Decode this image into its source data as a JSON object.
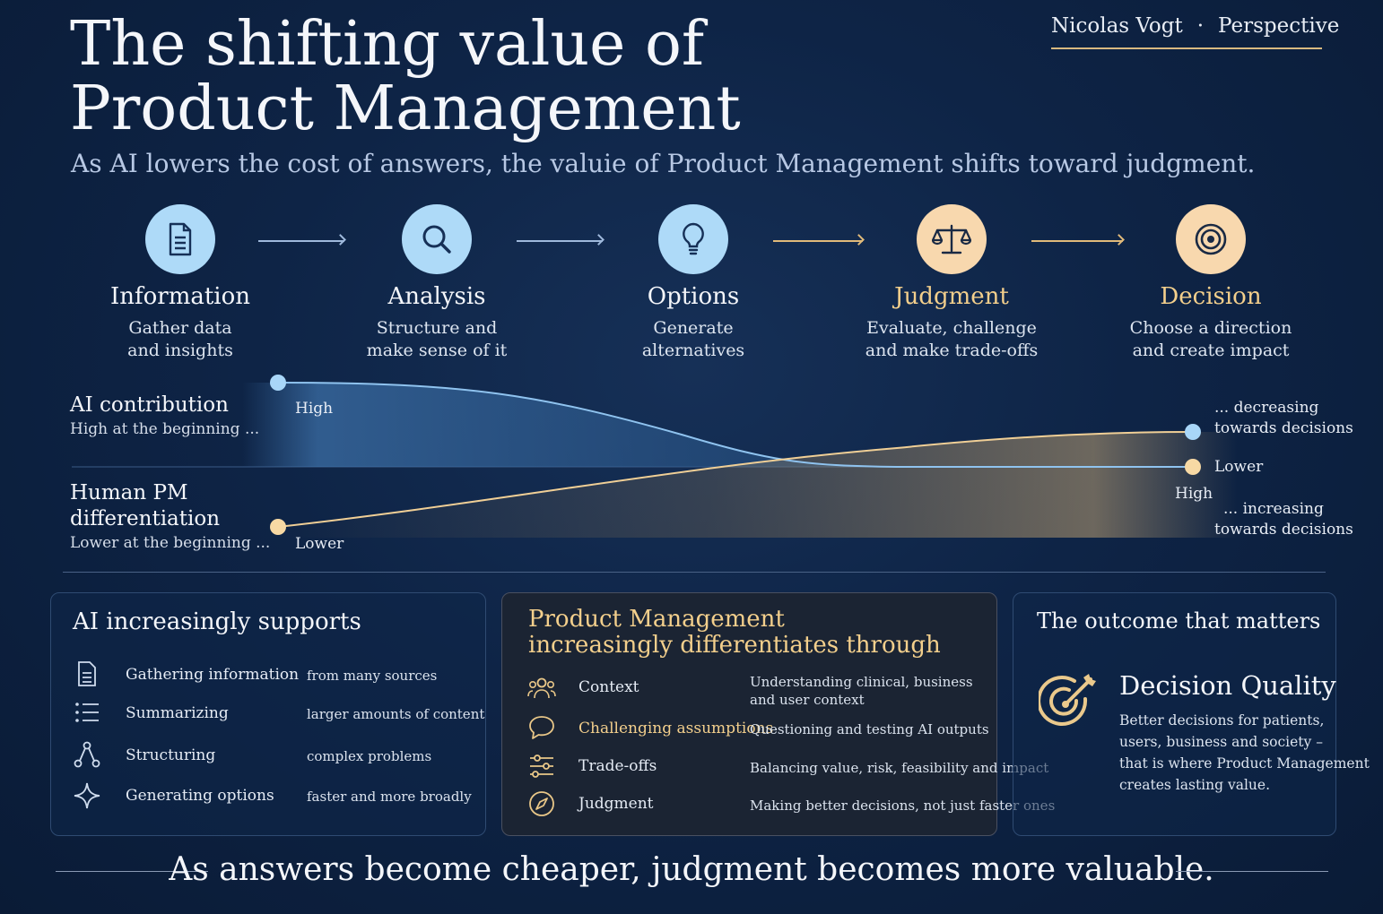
{
  "header": {
    "title_line1": "The shifting value of",
    "title_line2": "Product Management",
    "subtitle": "As AI lowers the cost of answers, the valuie of Product Management shifts toward judgment.",
    "author": "Nicolas Vogt",
    "separator": "·",
    "tag": "Perspective"
  },
  "steps": [
    {
      "name": "Information",
      "line1": "Gather data",
      "line2": "and insights",
      "icon": "document-icon",
      "tone": "blue"
    },
    {
      "name": "Analysis",
      "line1": "Structure and",
      "line2": "make sense of it",
      "icon": "magnifier-icon",
      "tone": "blue"
    },
    {
      "name": "Options",
      "line1": "Generate",
      "line2": "alternatives",
      "icon": "lightbulb-icon",
      "tone": "blue"
    },
    {
      "name": "Judgment",
      "line1": "Evaluate, challenge",
      "line2": "and make trade-offs",
      "icon": "scales-icon",
      "tone": "gold"
    },
    {
      "name": "Decision",
      "line1": "Choose a direction",
      "line2": "and create impact",
      "icon": "target-icon",
      "tone": "gold"
    }
  ],
  "curves": {
    "ai": {
      "label": "AI contribution",
      "sublabel": "High at the beginning ...",
      "start": "High",
      "end": "Lower",
      "end_note_line1": "... decreasing",
      "end_note_line2": "towards decisions",
      "color": "#9fd0f5"
    },
    "human": {
      "label_line1": "Human PM",
      "label_line2": "differentiation",
      "sublabel": "Lower at the beginning ...",
      "start": "Lower",
      "end": "High",
      "end_note_line1": "... increasing",
      "end_note_line2": "towards decisions",
      "color": "#f5d39a"
    }
  },
  "ai_card": {
    "title": "AI increasingly supports",
    "rows": [
      {
        "label": "Gathering information",
        "detail": "from many sources",
        "icon": "document-icon"
      },
      {
        "label": "Summarizing",
        "detail": "larger amounts of content",
        "icon": "list-icon"
      },
      {
        "label": "Structuring",
        "detail": "complex problems",
        "icon": "nodes-icon"
      },
      {
        "label": "Generating options",
        "detail": "faster and more broadly",
        "icon": "sparkle-icon"
      }
    ]
  },
  "pm_card": {
    "title_line1": "Product Management",
    "title_line2": "increasingly differentiates through",
    "rows": [
      {
        "label": "Context",
        "detail_line1": "Understanding clinical, business",
        "detail_line2": "and user context",
        "icon": "people-icon"
      },
      {
        "label": "Challenging assumptions",
        "detail_line1": "Questioning and testing AI outputs",
        "detail_line2": "",
        "icon": "speech-bubble-icon"
      },
      {
        "label": "Trade-offs",
        "detail_line1": "Balancing value, risk, feasibility and impact",
        "detail_line2": "",
        "icon": "sliders-icon"
      },
      {
        "label": "Judgment",
        "detail_line1": "Making better decisions, not just faster ones",
        "detail_line2": "",
        "icon": "compass-icon"
      }
    ]
  },
  "outcome_card": {
    "title": "The outcome that matters",
    "headline": "Decision Quality",
    "desc_line1": "Better decisions for patients,",
    "desc_line2": "users, business and society –",
    "desc_line3": "that is where Product Management",
    "desc_line4": "creates lasting value.",
    "icon": "target-arrow-icon"
  },
  "footer": {
    "text": "As answers become cheaper, judgment becomes more valuable."
  }
}
